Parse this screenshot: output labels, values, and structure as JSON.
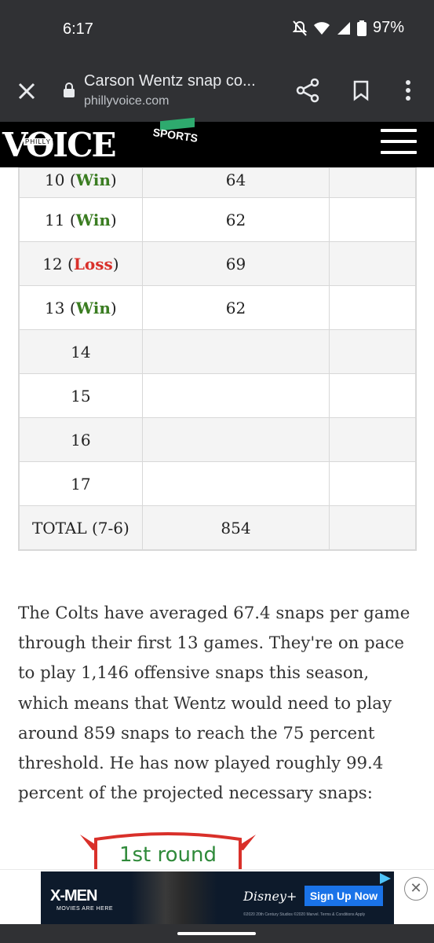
{
  "status_bar": {
    "time": "6:17",
    "battery": "97%"
  },
  "toolbar": {
    "title": "Carson Wentz snap co...",
    "url": "phillyvoice.com"
  },
  "site": {
    "logo": "VOICE",
    "logo_small": "PHILLY",
    "section": "SPORTS"
  },
  "table": {
    "rows": [
      {
        "week": "10",
        "result": "Win",
        "snaps": "64"
      },
      {
        "week": "11",
        "result": "Win",
        "snaps": "62"
      },
      {
        "week": "12",
        "result": "Loss",
        "snaps": "69"
      },
      {
        "week": "13",
        "result": "Win",
        "snaps": "62"
      },
      {
        "week": "14",
        "result": "",
        "snaps": ""
      },
      {
        "week": "15",
        "result": "",
        "snaps": ""
      },
      {
        "week": "16",
        "result": "",
        "snaps": ""
      },
      {
        "week": "17",
        "result": "",
        "snaps": ""
      }
    ],
    "total_label": "TOTAL (7-6)",
    "total_snaps": "854"
  },
  "article": {
    "paragraph": "The Colts have averaged 67.4 snaps per game through their first 13 games. They're on pace to play 1,146 offensive snaps this season, which means that Wentz would need to play around 859 snaps to reach the 75 percent threshold. He has now played roughly 99.4 percent of the projected necessary snaps:",
    "badge_text": "1st round"
  },
  "ad": {
    "brand": "X-MEN",
    "tagline": "MOVIES ARE HERE",
    "service": "Disney+",
    "cta": "Sign Up Now",
    "legal": "©2020 20th Century Studios ©2020 Marvel. Terms & Conditions Apply"
  },
  "colors": {
    "win": "#3b7d22",
    "loss": "#d9302a",
    "chrome_bg": "#303134"
  }
}
